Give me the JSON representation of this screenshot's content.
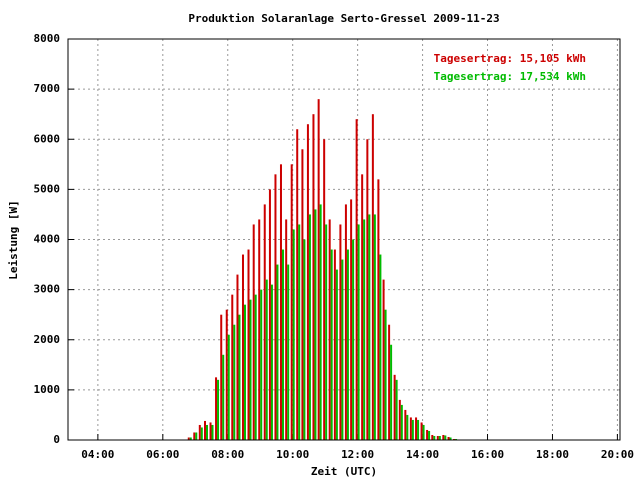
{
  "chart_data": {
    "type": "bar",
    "title": "Produktion Solaranlage Serto-Gressel 2009-11-23",
    "x_label": "Zeit (UTC)",
    "y_label": "Leistung [W]",
    "x": [
      6.83,
      7,
      7.17,
      7.33,
      7.5,
      7.67,
      7.83,
      8,
      8.17,
      8.33,
      8.5,
      8.67,
      8.83,
      9,
      9.17,
      9.33,
      9.5,
      9.67,
      9.83,
      10,
      10.17,
      10.33,
      10.5,
      10.67,
      10.83,
      11,
      11.17,
      11.33,
      11.5,
      11.67,
      11.83,
      12,
      12.17,
      12.33,
      12.5,
      12.67,
      12.83,
      13,
      13.17,
      13.33,
      13.5,
      13.67,
      13.83,
      14,
      14.17,
      14.33,
      14.5,
      14.67,
      14.83,
      15
    ],
    "series": [
      {
        "name": "Tagesertrag: 15,105 kWh",
        "color": "#cc0000",
        "values": [
          50,
          150,
          300,
          380,
          350,
          1250,
          2500,
          2600,
          2900,
          3300,
          3700,
          3800,
          4300,
          4400,
          4700,
          5000,
          5300,
          5500,
          4400,
          5500,
          6200,
          5800,
          6300,
          6500,
          6800,
          6000,
          4400,
          3800,
          4300,
          4700,
          4800,
          6400,
          5300,
          6000,
          6500,
          5200,
          3200,
          2300,
          1300,
          800,
          600,
          450,
          450,
          350,
          200,
          100,
          80,
          100,
          60,
          20
        ]
      },
      {
        "name": "Tagesertrag: 17,534 kWh",
        "color": "#00bb00",
        "values": [
          50,
          150,
          250,
          300,
          300,
          1200,
          1700,
          2100,
          2300,
          2500,
          2700,
          2800,
          2900,
          3000,
          3200,
          3100,
          3500,
          3800,
          3500,
          4200,
          4300,
          4000,
          4500,
          4600,
          4700,
          4300,
          3800,
          3400,
          3600,
          3800,
          4000,
          4300,
          4400,
          4500,
          4500,
          3700,
          2600,
          1900,
          1200,
          700,
          500,
          400,
          400,
          300,
          180,
          80,
          80,
          90,
          50,
          20
        ]
      }
    ],
    "xlim": [
      3.08,
      20.08
    ],
    "xticks": [
      {
        "value": 4,
        "label": "04:00"
      },
      {
        "value": 6,
        "label": "06:00"
      },
      {
        "value": 8,
        "label": "08:00"
      },
      {
        "value": 10,
        "label": "10:00"
      },
      {
        "value": 12,
        "label": "12:00"
      },
      {
        "value": 14,
        "label": "14:00"
      },
      {
        "value": 16,
        "label": "16:00"
      },
      {
        "value": 18,
        "label": "18:00"
      },
      {
        "value": 20,
        "label": "20:00"
      }
    ],
    "ylim": [
      0,
      8000
    ],
    "yticks": [
      0,
      1000,
      2000,
      3000,
      4000,
      5000,
      6000,
      7000,
      8000
    ],
    "grid": true,
    "legend": "top-right"
  }
}
